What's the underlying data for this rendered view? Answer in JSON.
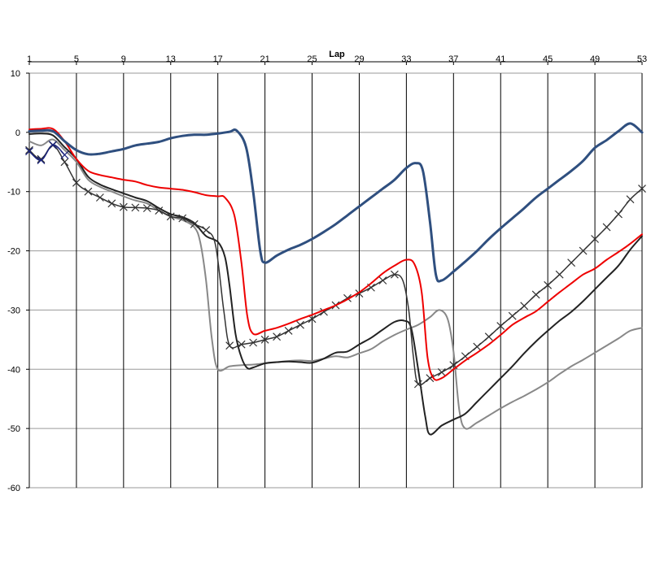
{
  "chart_data": {
    "type": "line",
    "title": "",
    "xlabel": "Lap",
    "ylabel": "",
    "x_axis_position": "top",
    "xlim": [
      1,
      53
    ],
    "ylim": [
      -60,
      10
    ],
    "x_ticks": [
      1,
      5,
      9,
      13,
      17,
      21,
      25,
      29,
      33,
      37,
      41,
      45,
      49,
      53
    ],
    "y_ticks": [
      10,
      0,
      -10,
      -20,
      -30,
      -40,
      -50,
      -60
    ],
    "grid": {
      "vertical": true,
      "horizontal": true
    },
    "legend": "none",
    "series": [
      {
        "color": "#2f4f7f",
        "width": 3,
        "marker": "none",
        "points": [
          [
            1,
            0.2
          ],
          [
            2,
            0.3
          ],
          [
            3,
            0.2
          ],
          [
            4,
            -1.5
          ],
          [
            5,
            -3
          ],
          [
            6,
            -3.7
          ],
          [
            7,
            -3.6
          ],
          [
            8,
            -3.2
          ],
          [
            9,
            -2.8
          ],
          [
            10,
            -2.2
          ],
          [
            11,
            -1.9
          ],
          [
            12,
            -1.6
          ],
          [
            13,
            -1
          ],
          [
            14,
            -0.6
          ],
          [
            15,
            -0.4
          ],
          [
            16,
            -0.4
          ],
          [
            17,
            -0.2
          ],
          [
            18,
            0.1
          ],
          [
            18.6,
            0.3
          ],
          [
            19.4,
            -2.5
          ],
          [
            20,
            -10
          ],
          [
            20.6,
            -20
          ],
          [
            21,
            -22
          ],
          [
            22,
            -20.8
          ],
          [
            23,
            -19.8
          ],
          [
            24,
            -19
          ],
          [
            25,
            -18
          ],
          [
            26,
            -16.8
          ],
          [
            27,
            -15.5
          ],
          [
            28,
            -14
          ],
          [
            29,
            -12.5
          ],
          [
            30,
            -11
          ],
          [
            31,
            -9.5
          ],
          [
            32,
            -8
          ],
          [
            33,
            -6
          ],
          [
            33.8,
            -5.2
          ],
          [
            34.4,
            -6.5
          ],
          [
            35,
            -15
          ],
          [
            35.5,
            -24
          ],
          [
            36,
            -25
          ],
          [
            37,
            -23.5
          ],
          [
            38,
            -21.8
          ],
          [
            39,
            -20
          ],
          [
            40,
            -18
          ],
          [
            41,
            -16.2
          ],
          [
            42,
            -14.5
          ],
          [
            43,
            -12.8
          ],
          [
            44,
            -11
          ],
          [
            45,
            -9.5
          ],
          [
            46,
            -8
          ],
          [
            47,
            -6.5
          ],
          [
            48,
            -4.8
          ],
          [
            49,
            -2.6
          ],
          [
            50,
            -1.3
          ],
          [
            51,
            0.2
          ],
          [
            52,
            1.5
          ],
          [
            53,
            0
          ]
        ]
      },
      {
        "color": "#ee0000",
        "width": 2,
        "marker": "none",
        "points": [
          [
            1,
            0.5
          ],
          [
            2,
            0.6
          ],
          [
            3,
            0.6
          ],
          [
            4,
            -1.5
          ],
          [
            5,
            -4.5
          ],
          [
            6,
            -6.5
          ],
          [
            7,
            -7.2
          ],
          [
            8,
            -7.6
          ],
          [
            9,
            -8
          ],
          [
            10,
            -8.3
          ],
          [
            11,
            -8.9
          ],
          [
            12,
            -9.3
          ],
          [
            13,
            -9.5
          ],
          [
            14,
            -9.7
          ],
          [
            15,
            -10.1
          ],
          [
            16,
            -10.6
          ],
          [
            17,
            -10.8
          ],
          [
            17.6,
            -11
          ],
          [
            18.4,
            -14
          ],
          [
            19,
            -22
          ],
          [
            19.5,
            -31
          ],
          [
            20,
            -34
          ],
          [
            21,
            -33.5
          ],
          [
            22,
            -33
          ],
          [
            23,
            -32.3
          ],
          [
            24,
            -31.5
          ],
          [
            25,
            -30.8
          ],
          [
            26,
            -30
          ],
          [
            27,
            -29.2
          ],
          [
            28,
            -28.2
          ],
          [
            29,
            -27
          ],
          [
            30,
            -25.5
          ],
          [
            31,
            -23.8
          ],
          [
            32,
            -22.5
          ],
          [
            33,
            -21.5
          ],
          [
            33.7,
            -22.3
          ],
          [
            34.3,
            -27
          ],
          [
            34.8,
            -38
          ],
          [
            35.3,
            -41.5
          ],
          [
            36,
            -41.5
          ],
          [
            37,
            -40
          ],
          [
            38,
            -38.5
          ],
          [
            39,
            -37.2
          ],
          [
            40,
            -35.8
          ],
          [
            41,
            -34.2
          ],
          [
            42,
            -32.5
          ],
          [
            43,
            -31.3
          ],
          [
            44,
            -30.2
          ],
          [
            45,
            -28.6
          ],
          [
            46,
            -27
          ],
          [
            47,
            -25.5
          ],
          [
            48,
            -24
          ],
          [
            49,
            -23
          ],
          [
            50,
            -21.5
          ],
          [
            51,
            -20.2
          ],
          [
            52,
            -18.8
          ],
          [
            53,
            -17.2
          ]
        ]
      },
      {
        "color": "#333333",
        "width": 1.5,
        "marker": "x",
        "points": [
          [
            1,
            -3
          ],
          [
            2,
            -4.5
          ],
          [
            3,
            -2.2
          ],
          [
            4,
            -5
          ],
          [
            5,
            -8.5
          ],
          [
            6,
            -10
          ],
          [
            7,
            -11
          ],
          [
            8,
            -12
          ],
          [
            9,
            -12.6
          ],
          [
            10,
            -12.7
          ],
          [
            11,
            -12.8
          ],
          [
            12,
            -13.2
          ],
          [
            13,
            -14.2
          ],
          [
            14,
            -14.5
          ],
          [
            15,
            -15.5
          ],
          [
            16,
            -16.5
          ],
          [
            16.8,
            -19
          ],
          [
            17.5,
            -30
          ],
          [
            18,
            -36
          ],
          [
            19,
            -35.8
          ],
          [
            20,
            -35.5
          ],
          [
            21,
            -35
          ],
          [
            22,
            -34.5
          ],
          [
            23,
            -33.5
          ],
          [
            24,
            -32.5
          ],
          [
            25,
            -31.5
          ],
          [
            26,
            -30.3
          ],
          [
            27,
            -29.2
          ],
          [
            28,
            -28
          ],
          [
            29,
            -27.2
          ],
          [
            30,
            -26.2
          ],
          [
            31,
            -25
          ],
          [
            32,
            -24
          ],
          [
            32.7,
            -25
          ],
          [
            33.2,
            -30
          ],
          [
            33.6,
            -38
          ],
          [
            34,
            -42.5
          ],
          [
            35,
            -41.5
          ],
          [
            36,
            -40.5
          ],
          [
            37,
            -39.3
          ],
          [
            38,
            -37.8
          ],
          [
            39,
            -36.2
          ],
          [
            40,
            -34.5
          ],
          [
            41,
            -32.7
          ],
          [
            42,
            -31
          ],
          [
            43,
            -29.3
          ],
          [
            44,
            -27.4
          ],
          [
            45,
            -25.8
          ],
          [
            46,
            -24
          ],
          [
            47,
            -22
          ],
          [
            48,
            -20
          ],
          [
            49,
            -18
          ],
          [
            50,
            -16
          ],
          [
            51,
            -13.8
          ],
          [
            52,
            -11.3
          ],
          [
            53,
            -9.5
          ]
        ]
      },
      {
        "color": "#222222",
        "width": 2,
        "marker": "none",
        "points": [
          [
            1,
            -0.3
          ],
          [
            2,
            -0.2
          ],
          [
            3,
            -0.5
          ],
          [
            4,
            -2.5
          ],
          [
            5,
            -4.5
          ],
          [
            6,
            -7.5
          ],
          [
            7,
            -8.8
          ],
          [
            8,
            -9.6
          ],
          [
            9,
            -10.3
          ],
          [
            10,
            -11
          ],
          [
            11,
            -11.6
          ],
          [
            12,
            -12.8
          ],
          [
            13,
            -13.8
          ],
          [
            14,
            -14.3
          ],
          [
            15,
            -15.3
          ],
          [
            16,
            -17.5
          ],
          [
            17,
            -18.5
          ],
          [
            17.6,
            -21
          ],
          [
            18,
            -26
          ],
          [
            18.5,
            -34
          ],
          [
            19,
            -38
          ],
          [
            19.5,
            -39.8
          ],
          [
            20,
            -39.7
          ],
          [
            21,
            -39
          ],
          [
            22,
            -38.8
          ],
          [
            23,
            -38.7
          ],
          [
            24,
            -38.8
          ],
          [
            25,
            -38.9
          ],
          [
            26,
            -38.2
          ],
          [
            27,
            -37.2
          ],
          [
            28,
            -37
          ],
          [
            29,
            -35.8
          ],
          [
            30,
            -34.7
          ],
          [
            31,
            -33.3
          ],
          [
            32,
            -32
          ],
          [
            32.8,
            -31.8
          ],
          [
            33.4,
            -33
          ],
          [
            34,
            -40
          ],
          [
            34.6,
            -48
          ],
          [
            35,
            -51
          ],
          [
            36,
            -49.5
          ],
          [
            37,
            -48.5
          ],
          [
            38,
            -47.5
          ],
          [
            39,
            -45.5
          ],
          [
            40,
            -43.5
          ],
          [
            41,
            -41.5
          ],
          [
            42,
            -39.5
          ],
          [
            43,
            -37.3
          ],
          [
            44,
            -35.3
          ],
          [
            45,
            -33.5
          ],
          [
            46,
            -31.8
          ],
          [
            47,
            -30.3
          ],
          [
            48,
            -28.5
          ],
          [
            49,
            -26.5
          ],
          [
            50,
            -24.5
          ],
          [
            51,
            -22.5
          ],
          [
            52,
            -19.8
          ],
          [
            53,
            -17.5
          ]
        ]
      },
      {
        "color": "#888888",
        "width": 2,
        "marker": "none",
        "points": [
          [
            1,
            -1.5
          ],
          [
            2,
            -2.2
          ],
          [
            3,
            -1.2
          ],
          [
            4,
            -3
          ],
          [
            5,
            -5
          ],
          [
            6,
            -8
          ],
          [
            7,
            -9.2
          ],
          [
            8,
            -10
          ],
          [
            9,
            -10.8
          ],
          [
            10,
            -11.5
          ],
          [
            11,
            -12
          ],
          [
            12,
            -13.2
          ],
          [
            13,
            -14.2
          ],
          [
            14,
            -14.8
          ],
          [
            15,
            -16
          ],
          [
            15.5,
            -18.5
          ],
          [
            16,
            -25
          ],
          [
            16.5,
            -35
          ],
          [
            17,
            -40
          ],
          [
            18,
            -39.5
          ],
          [
            19,
            -39.3
          ],
          [
            20,
            -39.2
          ],
          [
            21,
            -39
          ],
          [
            22,
            -38.8
          ],
          [
            23,
            -38.6
          ],
          [
            24,
            -38.5
          ],
          [
            25,
            -38.6
          ],
          [
            26,
            -38.2
          ],
          [
            27,
            -37.8
          ],
          [
            28,
            -38
          ],
          [
            29,
            -37.3
          ],
          [
            30,
            -36.6
          ],
          [
            31,
            -35.3
          ],
          [
            32,
            -34.2
          ],
          [
            33,
            -33.3
          ],
          [
            34,
            -32.5
          ],
          [
            35,
            -31.2
          ],
          [
            35.8,
            -30
          ],
          [
            36.5,
            -31.5
          ],
          [
            37,
            -37
          ],
          [
            37.5,
            -47
          ],
          [
            38,
            -50
          ],
          [
            39,
            -49
          ],
          [
            40,
            -47.8
          ],
          [
            41,
            -46.6
          ],
          [
            42,
            -45.5
          ],
          [
            43,
            -44.5
          ],
          [
            44,
            -43.4
          ],
          [
            45,
            -42.2
          ],
          [
            46,
            -40.8
          ],
          [
            47,
            -39.5
          ],
          [
            48,
            -38.4
          ],
          [
            49,
            -37.2
          ],
          [
            50,
            -36
          ],
          [
            51,
            -34.8
          ],
          [
            52,
            -33.5
          ],
          [
            53,
            -33
          ]
        ]
      },
      {
        "color": "#1a237e",
        "width": 1.5,
        "marker": "x",
        "points": [
          [
            1,
            -3.2
          ],
          [
            2,
            -4.7
          ],
          [
            3,
            -2.1
          ],
          [
            4,
            -3.8
          ]
        ]
      }
    ]
  }
}
